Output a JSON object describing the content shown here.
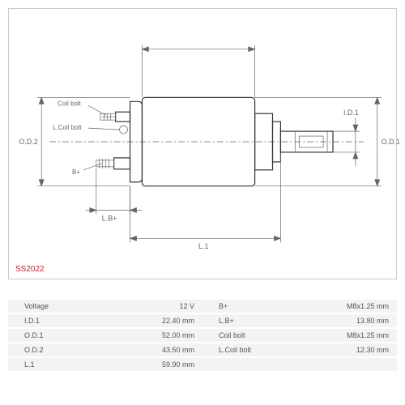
{
  "part_number": "SS2022",
  "part_color": "#b22a2a",
  "diagram": {
    "callouts": {
      "coil_bolt": "Coil bolt",
      "l_coil_bolt": "L.Coil bolt",
      "b_plus": "B+"
    },
    "dims": {
      "od2": "O.D.2",
      "od1": "O.D.1",
      "id1": "I.D.1",
      "l1": "L.1",
      "lb_plus": "L.B+"
    }
  },
  "specs": [
    {
      "l1": "Voltage",
      "v1": "12 V",
      "l2": "B+",
      "v2": "M8x1.25 mm"
    },
    {
      "l1": "I.D.1",
      "v1": "22.40 mm",
      "l2": "L.B+",
      "v2": "13.80 mm"
    },
    {
      "l1": "O.D.1",
      "v1": "52.00 mm",
      "l2": "Coil bolt",
      "v2": "M8x1.25 mm"
    },
    {
      "l1": "O.D.2",
      "v1": "43.50 mm",
      "l2": "L.Coil bolt",
      "v2": "12.30 mm"
    },
    {
      "l1": "L.1",
      "v1": "59.90 mm",
      "l2": "",
      "v2": ""
    }
  ],
  "colors": {
    "line": "#666666",
    "bg": "#ffffff",
    "row_bg": "#f3f3f3"
  }
}
